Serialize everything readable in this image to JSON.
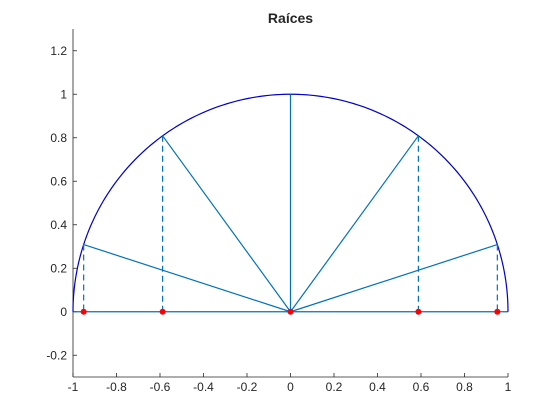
{
  "chart_data": {
    "type": "line",
    "title": "Raíces",
    "xlim": [
      -1,
      1
    ],
    "ylim": [
      -0.3,
      1.3
    ],
    "xticks": [
      -1,
      -0.8,
      -0.6,
      -0.4,
      -0.2,
      0,
      0.2,
      0.4,
      0.6,
      0.8,
      1
    ],
    "xtick_labels": [
      "-1",
      "-0.8",
      "-0.6",
      "-0.4",
      "-0.2",
      "0",
      "0.2",
      "0.4",
      "0.6",
      "0.8",
      "1"
    ],
    "yticks": [
      -0.2,
      0,
      0.2,
      0.4,
      0.6,
      0.8,
      1,
      1.2
    ],
    "ytick_labels": [
      "-0.2",
      "0",
      "0.2",
      "0.4",
      "0.6",
      "0.8",
      "1",
      "1.2"
    ],
    "grid": false,
    "series": [
      {
        "type": "semicircle",
        "center": [
          0,
          0
        ],
        "radius": 1,
        "from_angle_deg": 0,
        "to_angle_deg": 180
      },
      {
        "type": "radial_lines",
        "origin": [
          0,
          0
        ],
        "endpoints": [
          [
            0.951,
            0.309
          ],
          [
            0.588,
            0.809
          ],
          [
            0,
            1
          ],
          [
            -0.588,
            0.809
          ],
          [
            -0.951,
            0.309
          ]
        ]
      },
      {
        "type": "baseline",
        "x": [
          -1,
          1
        ],
        "y": [
          0,
          0
        ]
      },
      {
        "type": "dashed_projections",
        "x": [
          0.951,
          0.588,
          -0.588,
          -0.951
        ],
        "y_top": [
          0.309,
          0.809,
          0.809,
          0.309
        ]
      },
      {
        "type": "scatter",
        "x": [
          -0.951,
          -0.588,
          0,
          0.588,
          0.951
        ],
        "y": [
          0,
          0,
          0,
          0,
          0
        ]
      }
    ],
    "colors": {
      "arc": "#0000cc",
      "rays": "#0072bd",
      "markers": "#ff0000",
      "axis": "#262626"
    }
  }
}
